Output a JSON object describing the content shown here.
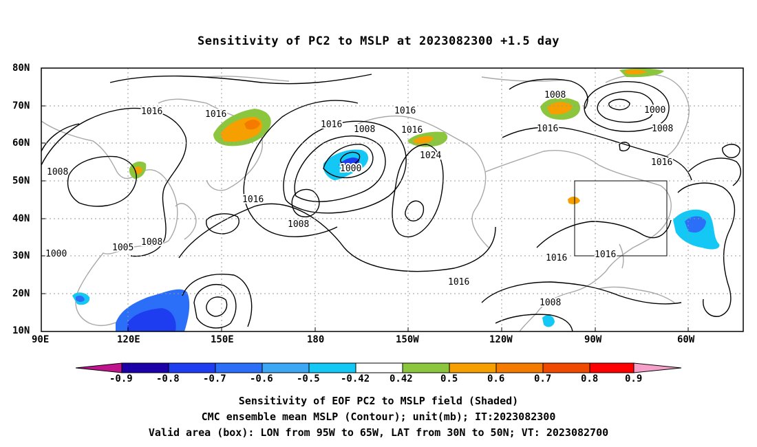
{
  "title": "Sensitivity of PC2 to MSLP at 2023082300 +1.5 day",
  "lat_labels": [
    "80N",
    "70N",
    "60N",
    "50N",
    "40N",
    "30N",
    "20N",
    "10N"
  ],
  "lon_labels": [
    "90E",
    "120E",
    "150E",
    "180",
    "150W",
    "120W",
    "90W",
    "60W"
  ],
  "contour_labels": [
    "1016",
    "1016",
    "1016",
    "1016",
    "1008",
    "1016",
    "1008",
    "1000",
    "1016",
    "1008",
    "1000",
    "1016",
    "1024",
    "1016",
    "1008",
    "1008",
    "1005",
    "1000",
    "1016",
    "1016",
    "1016",
    "1008",
    "1008"
  ],
  "colorbar": {
    "labels": [
      "-0.9",
      "-0.8",
      "-0.7",
      "-0.6",
      "-0.5",
      "-0.42",
      "0.42",
      "0.5",
      "0.6",
      "0.7",
      "0.8",
      "0.9"
    ],
    "colors": [
      "#1c00a8",
      "#1e3cf0",
      "#2b6ef7",
      "#3ca8f5",
      "#14c8f5",
      "#ffffff",
      "#8cc63f",
      "#f5a000",
      "#f57a00",
      "#f04a00",
      "#ff0000"
    ],
    "left_tip": "#c0148c",
    "right_tip": "#f5a0c8"
  },
  "captions": [
    "Sensitivity of EOF PC2 to MSLP field (Shaded)",
    "CMC ensemble mean MSLP (Contour); unit(mb); IT:2023082300",
    "Valid area (box): LON from 95W to 65W, LAT from 30N to 50N; VT: 2023082700"
  ]
}
